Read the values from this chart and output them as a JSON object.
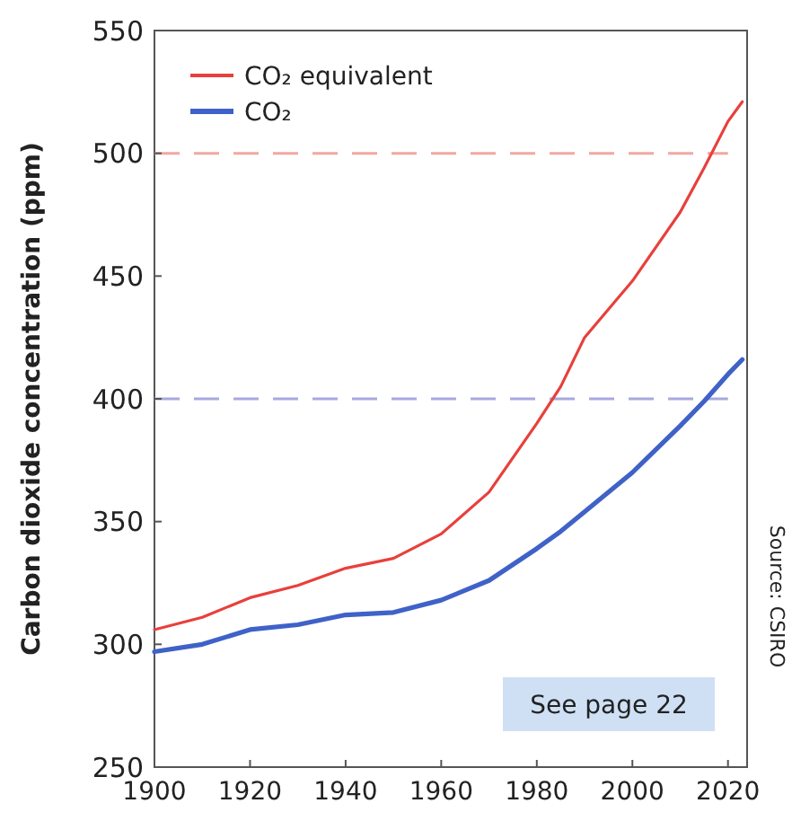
{
  "chart_data": {
    "type": "line",
    "ylabel": "Carbon dioxide concentration (ppm)",
    "xlim": [
      1900,
      2024
    ],
    "xticks": [
      1900,
      1920,
      1940,
      1960,
      1980,
      2000,
      2020
    ],
    "ylim": [
      250,
      550
    ],
    "yticks": [
      250,
      300,
      350,
      400,
      450,
      500,
      550
    ],
    "legend": "top left",
    "grid": false,
    "line_style": "solid",
    "x": [
      1900,
      1910,
      1920,
      1930,
      1940,
      1950,
      1960,
      1970,
      1980,
      1985,
      1990,
      2000,
      2010,
      2015,
      2020,
      2023
    ],
    "series": [
      {
        "name": "CO₂ equivalent",
        "color": "#e8403c",
        "values": [
          306,
          311,
          319,
          324,
          331,
          335,
          345,
          362,
          390,
          405,
          425,
          448,
          476,
          494,
          513,
          521
        ]
      },
      {
        "name": "CO₂",
        "color": "#3f62c8",
        "values": [
          297,
          300,
          306,
          308,
          312,
          313,
          318,
          326,
          339,
          346,
          354,
          370,
          389,
          399,
          410,
          416
        ]
      }
    ],
    "ref_lines": [
      {
        "axis": "y",
        "value": 500,
        "color": "#f0a8a0",
        "line_style": "dashed"
      },
      {
        "axis": "y",
        "value": 400,
        "color": "#a8a8e0",
        "line_style": "dashed"
      }
    ],
    "annotations": [
      "See page 22",
      "Source: CSIRO"
    ]
  }
}
